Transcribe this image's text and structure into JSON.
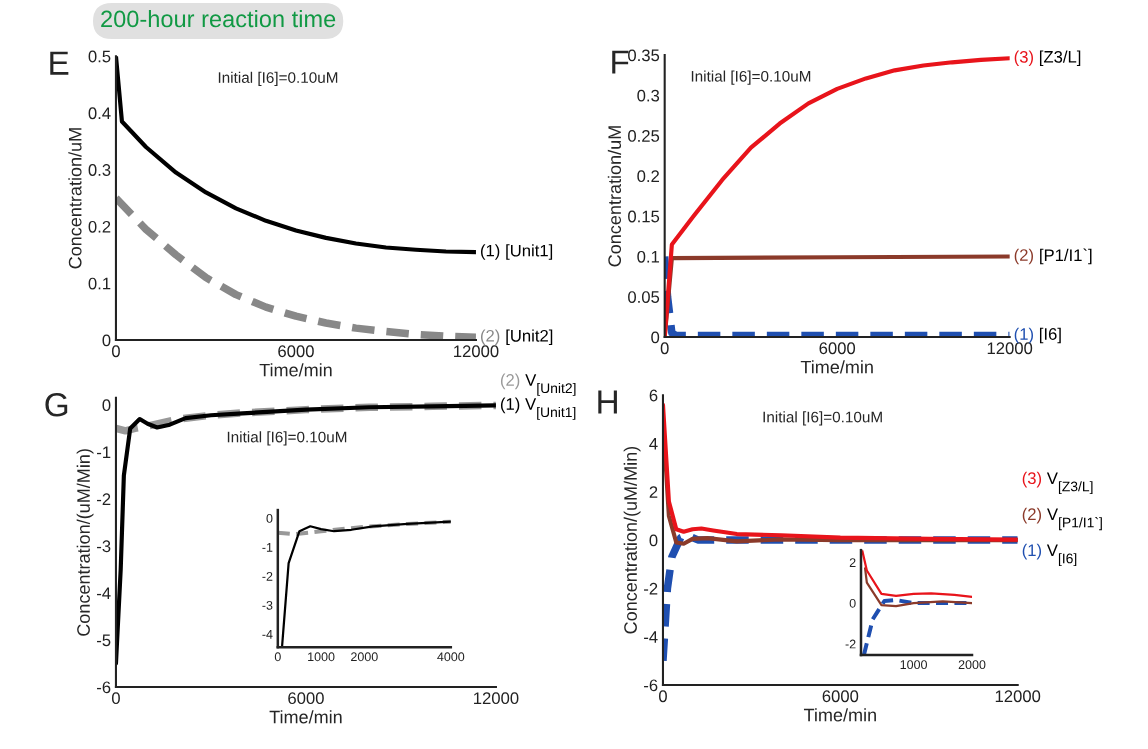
{
  "chart_data": [
    {
      "type": "line",
      "title": "E",
      "subtitle": "Initial [I6]=0.10uM",
      "annotations": [
        "200-hour reaction time"
      ],
      "xlabel": "Time/min",
      "ylabel": "Concentration/uM",
      "xlim": [
        0,
        12000
      ],
      "ylim": [
        0,
        0.5
      ],
      "xticks": [
        0,
        6000,
        12000
      ],
      "yticks": [
        0,
        0.1,
        0.2,
        0.3,
        0.4,
        0.5
      ],
      "series": [
        {
          "name": "(1) [Unit1]",
          "color": "#000000",
          "line_style": "solid",
          "x": [
            0,
            200,
            1000,
            2000,
            3000,
            4000,
            5000,
            6000,
            7000,
            8000,
            9000,
            10000,
            11000,
            12000
          ],
          "values": [
            0.5,
            0.385,
            0.34,
            0.295,
            0.26,
            0.232,
            0.21,
            0.193,
            0.18,
            0.17,
            0.163,
            0.159,
            0.156,
            0.155
          ]
        },
        {
          "name": "(2) [Unit2]",
          "color": "#888888",
          "line_style": "dashed",
          "x": [
            0,
            1000,
            2000,
            3000,
            4000,
            5000,
            6000,
            7000,
            8000,
            9000,
            10000,
            11000,
            12000
          ],
          "values": [
            0.25,
            0.195,
            0.15,
            0.11,
            0.08,
            0.058,
            0.042,
            0.03,
            0.021,
            0.015,
            0.01,
            0.007,
            0.005
          ]
        }
      ]
    },
    {
      "type": "line",
      "title": "F",
      "subtitle": "Initial [I6]=0.10uM",
      "xlabel": "Time/min",
      "ylabel": "Concentration/uM",
      "xlim": [
        0,
        12000
      ],
      "ylim": [
        0,
        0.35
      ],
      "xticks": [
        0,
        6000,
        12000
      ],
      "yticks": [
        0,
        0.05,
        0.1,
        0.15,
        0.2,
        0.25,
        0.3,
        0.35
      ],
      "series": [
        {
          "name": "(1) [I6]",
          "color": "#1f4fb0",
          "line_style": "dashed",
          "x": [
            0,
            100,
            250,
            400,
            12000
          ],
          "values": [
            0.1,
            0.05,
            0.005,
            0.002,
            0.002
          ]
        },
        {
          "name": "(2) [P1/I1`]",
          "color": "#8b3a2a",
          "line_style": "solid",
          "x": [
            0,
            250,
            6000,
            12000
          ],
          "values": [
            0,
            0.098,
            0.099,
            0.1
          ]
        },
        {
          "name": "(3) [Z3/L]",
          "color": "#e8141b",
          "line_style": "solid",
          "x": [
            0,
            250,
            1000,
            2000,
            3000,
            4000,
            5000,
            6000,
            7000,
            8000,
            9000,
            10000,
            11000,
            12000
          ],
          "values": [
            0,
            0.115,
            0.15,
            0.195,
            0.235,
            0.265,
            0.29,
            0.308,
            0.321,
            0.331,
            0.337,
            0.341,
            0.344,
            0.346
          ]
        }
      ]
    },
    {
      "type": "line",
      "title": "G",
      "subtitle": "Initial [I6]=0.10uM",
      "xlabel": "Time/min",
      "ylabel": "Concentration/(uM/Min)",
      "xlim": [
        0,
        12000
      ],
      "ylim": [
        -6,
        0.15
      ],
      "xticks": [
        0,
        6000,
        12000
      ],
      "yticks": [
        -6,
        -5,
        -4,
        -3,
        -2,
        -1,
        0
      ],
      "series": [
        {
          "name": "(2) V$_{[Unit2]}$",
          "color": "#999999",
          "line_style": "dashed",
          "x": [
            0,
            300,
            600,
            1000,
            2000,
            3000,
            4000,
            6000,
            8000,
            10000,
            12000
          ],
          "values": [
            -0.5,
            -0.55,
            -0.5,
            -0.45,
            -0.3,
            -0.22,
            -0.17,
            -0.1,
            -0.05,
            -0.03,
            -0.01
          ]
        },
        {
          "name": "(1) V$_{[Unit1]}$",
          "color": "#000000",
          "line_style": "solid",
          "x": [
            0,
            150,
            250,
            450,
            750,
            1000,
            1300,
            1700,
            2200,
            3000,
            4000,
            6000,
            8000,
            10000,
            12000
          ],
          "values": [
            -5.5,
            -3.5,
            -1.5,
            -0.5,
            -0.3,
            -0.4,
            -0.48,
            -0.42,
            -0.28,
            -0.22,
            -0.18,
            -0.1,
            -0.05,
            -0.03,
            -0.01
          ]
        }
      ]
    },
    {
      "type": "line",
      "xlim": [
        0,
        4000
      ],
      "ylim": [
        -4.45,
        0.28
      ],
      "xticks": [
        0,
        1000,
        2000,
        4000
      ],
      "yticks": [
        -4,
        -3,
        -2,
        -1,
        0
      ],
      "series": [
        {
          "color": "#999999",
          "line_style": "dashed",
          "x": [
            0,
            400,
            1000,
            2000,
            3000,
            4000
          ],
          "values": [
            -0.5,
            -0.55,
            -0.45,
            -0.3,
            -0.2,
            -0.12
          ]
        },
        {
          "color": "#000000",
          "line_style": "solid",
          "x": [
            100,
            250,
            500,
            750,
            1000,
            1300,
            1700,
            2200,
            3000,
            4000
          ],
          "values": [
            -4.4,
            -1.55,
            -0.45,
            -0.28,
            -0.38,
            -0.45,
            -0.4,
            -0.28,
            -0.2,
            -0.12
          ]
        }
      ]
    },
    {
      "type": "line",
      "title": "H",
      "subtitle": "Initial [I6]=0.10uM",
      "xlabel": "Time/min",
      "ylabel": "Concentration/(uM/Min)",
      "xlim": [
        0,
        12000
      ],
      "ylim": [
        -6,
        6
      ],
      "xticks": [
        0,
        6000,
        12000
      ],
      "yticks": [
        -6,
        -4,
        -2,
        0,
        2,
        4,
        6
      ],
      "series": [
        {
          "name": "(1) V$_{[I6]}$",
          "color": "#1f4fb0",
          "line_style": "dashed",
          "x": [
            0,
            150,
            300,
            600,
            800,
            1200,
            3000,
            12000
          ],
          "values": [
            -5,
            -2,
            -0.7,
            0.1,
            0.2,
            0,
            0,
            0
          ]
        },
        {
          "name": "(2) V$_{[P1/I1`]}$",
          "color": "#8b3a2a",
          "line_style": "solid",
          "x": [
            0,
            200,
            450,
            700,
            1000,
            1500,
            2500,
            4000,
            6000,
            12000
          ],
          "values": [
            5.0,
            1.0,
            -0.1,
            -0.15,
            0.05,
            0.08,
            -0.05,
            0.03,
            0,
            0
          ]
        },
        {
          "name": "(3) V$_{[Z3/L]}$",
          "color": "#e8141b",
          "line_style": "solid",
          "x": [
            0,
            200,
            450,
            700,
            1000,
            1300,
            1700,
            2500,
            4000,
            6000,
            9000,
            12000
          ],
          "values": [
            5.6,
            1.6,
            0.45,
            0.35,
            0.45,
            0.48,
            0.4,
            0.25,
            0.2,
            0.1,
            0.05,
            0.02
          ]
        }
      ]
    },
    {
      "type": "line",
      "xlim": [
        100,
        2000
      ],
      "ylim": [
        -2.55,
        2.6
      ],
      "xticks": [
        1000,
        2000
      ],
      "yticks": [
        -2,
        0,
        2
      ],
      "series": [
        {
          "color": "#1f4fb0",
          "line_style": "dashed",
          "x": [
            150,
            300,
            500,
            700,
            1000,
            2000
          ],
          "values": [
            -2.55,
            -0.8,
            0.1,
            0.15,
            0,
            0
          ]
        },
        {
          "color": "#8b3a2a",
          "line_style": "solid",
          "x": [
            170,
            200,
            450,
            700,
            1000,
            1500,
            2000
          ],
          "values": [
            1.7,
            1.0,
            -0.1,
            -0.15,
            0.0,
            0.08,
            0
          ]
        },
        {
          "color": "#e8141b",
          "line_style": "solid",
          "x": [
            120,
            200,
            450,
            700,
            1000,
            1300,
            1700,
            2000
          ],
          "values": [
            2.6,
            1.6,
            0.45,
            0.35,
            0.45,
            0.48,
            0.4,
            0.3
          ]
        }
      ]
    }
  ]
}
